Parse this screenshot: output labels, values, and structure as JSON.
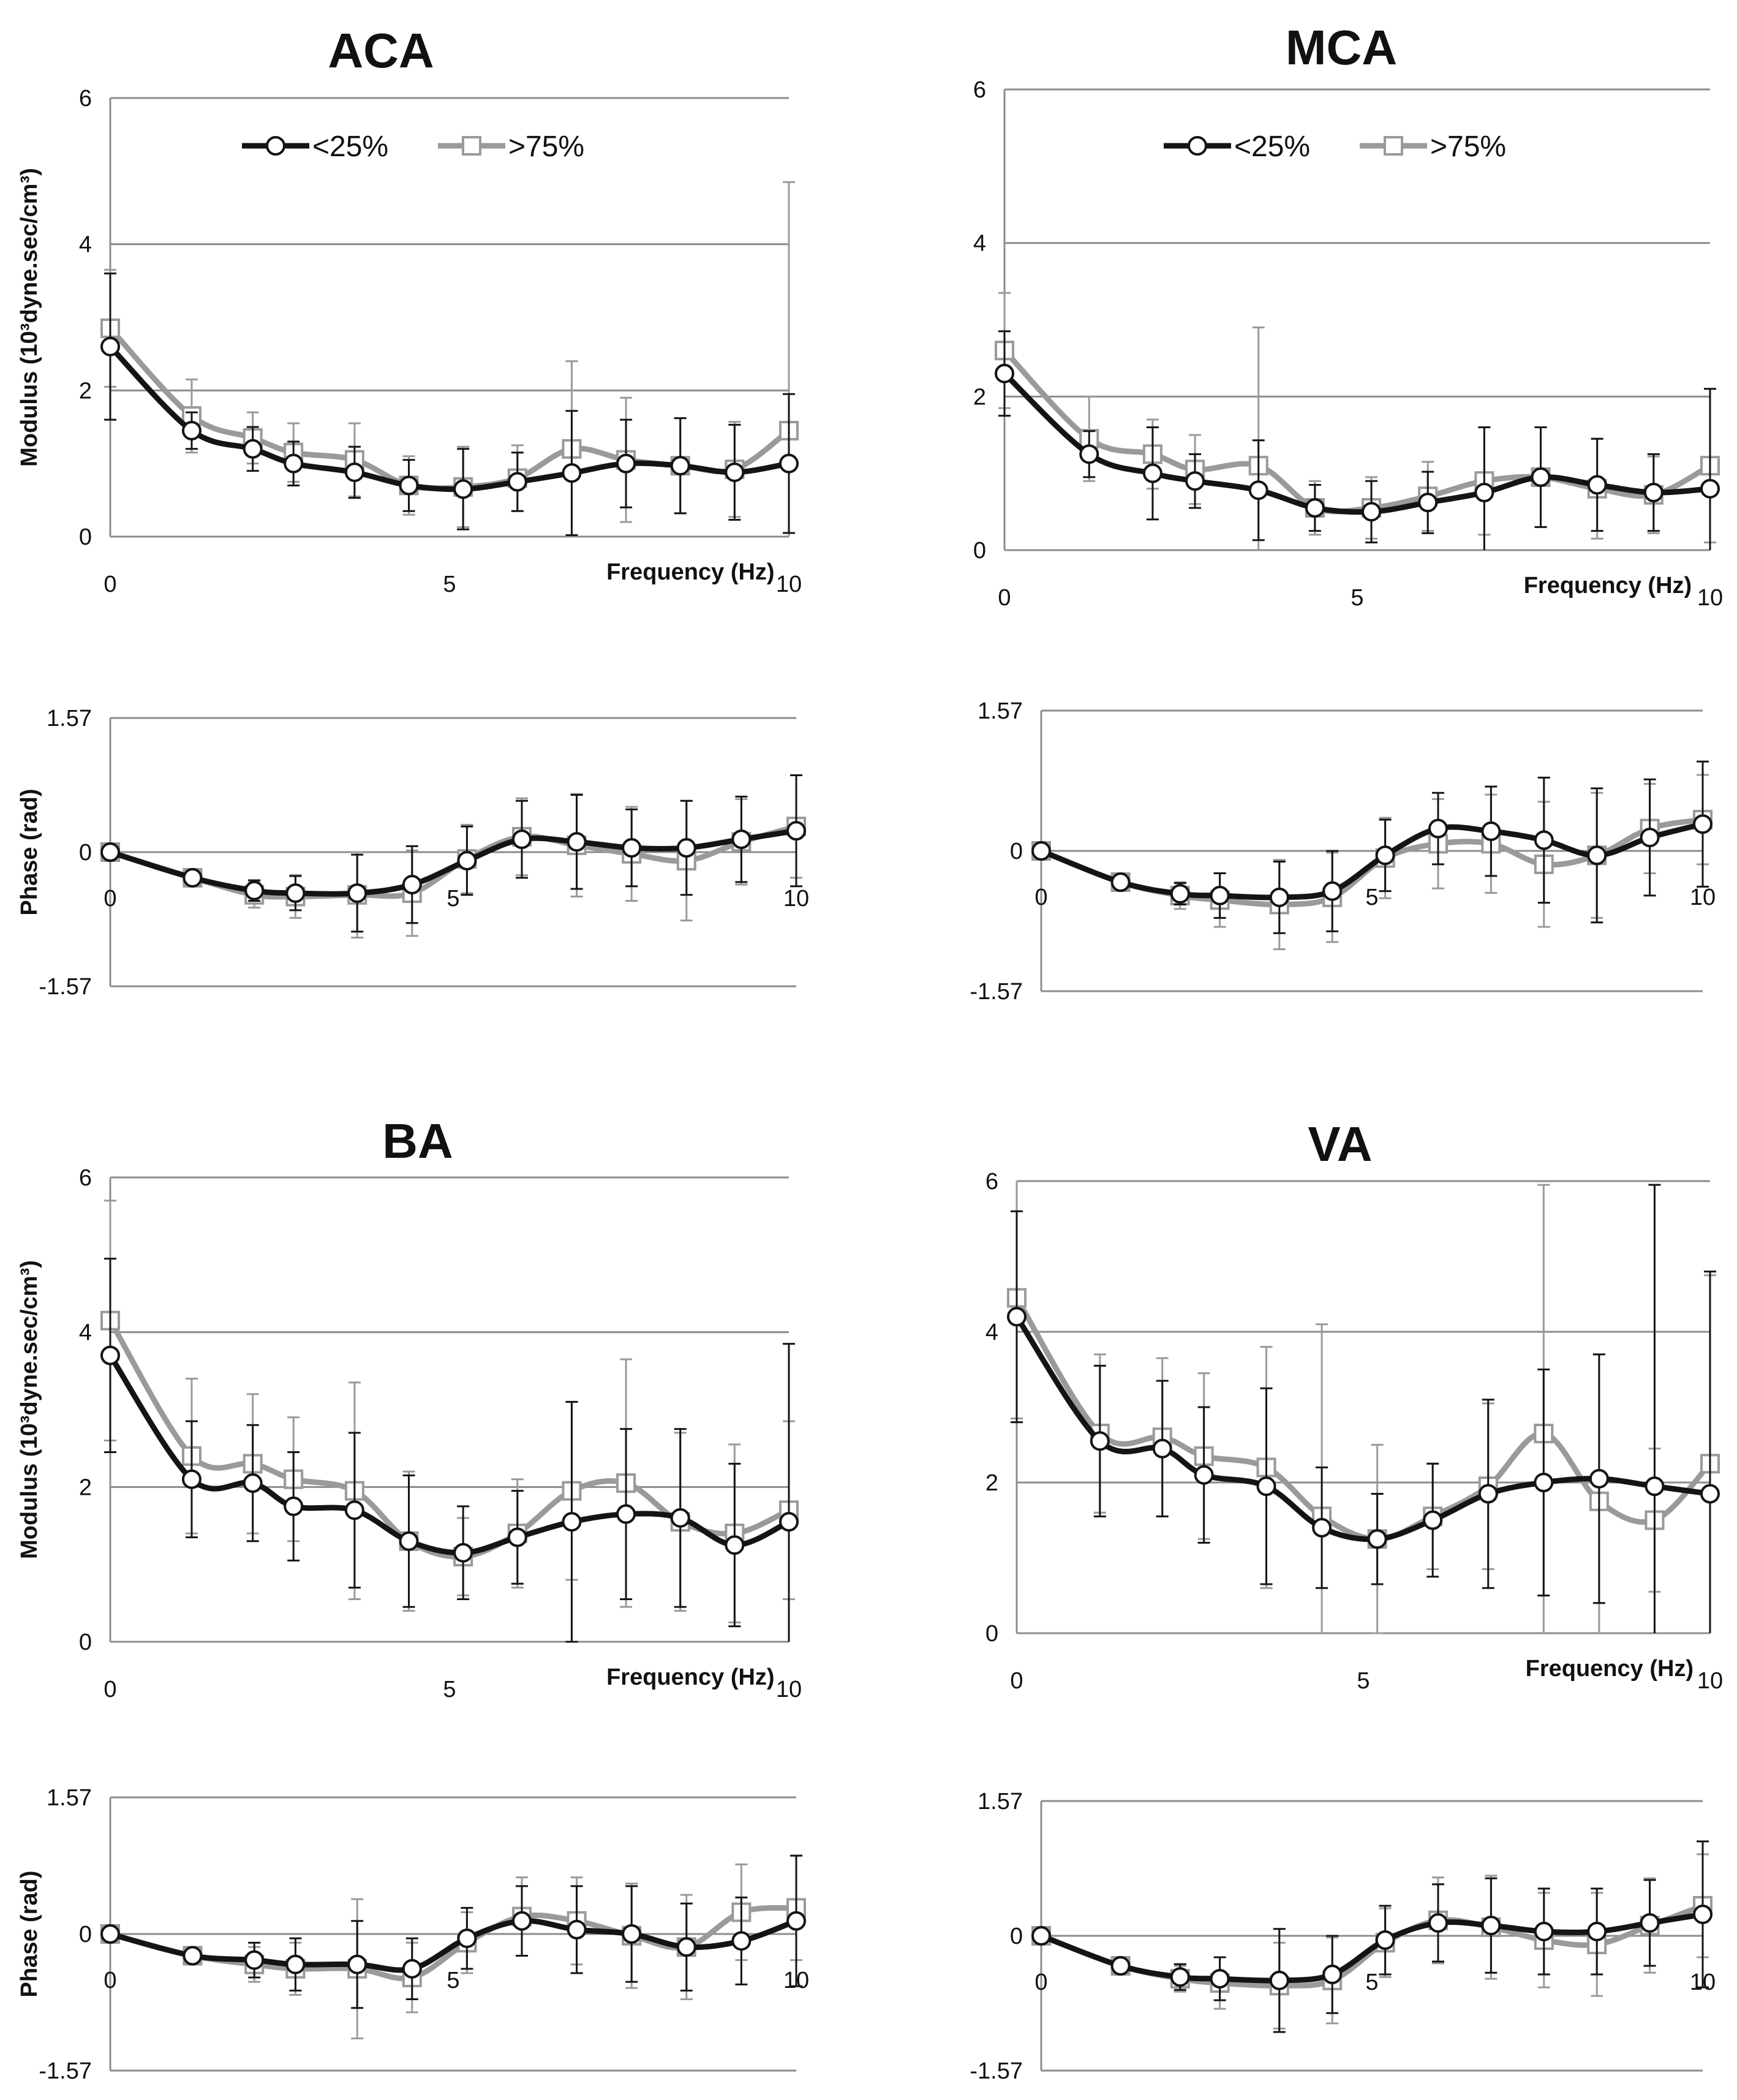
{
  "colors": {
    "lt25": "#141414",
    "gt75": "#9a9a9a",
    "grid": "#8c8c8c",
    "axis": "#8c8c8c"
  },
  "legend": {
    "lt25": "<25%",
    "gt75": ">75%"
  },
  "chart_data": [
    {
      "type": "line",
      "panel": "ACA",
      "kind": "modulus",
      "title": "ACA",
      "xlabel": "Frequency (Hz)",
      "ylabel": "Modulus (10³dyne.sec/cm³)",
      "xlim": [
        0,
        10
      ],
      "ylim": [
        0,
        6
      ],
      "xticks": [
        "0",
        "5",
        "10"
      ],
      "yticks": [
        "0",
        "2",
        "4",
        "6"
      ],
      "grid": true,
      "legend": "top",
      "x": [
        0,
        1.2,
        2.1,
        2.7,
        3.6,
        4.4,
        5.2,
        6.0,
        6.8,
        7.6,
        8.4,
        9.2,
        10
      ],
      "series": [
        {
          "key": "lt25",
          "name": "<25%",
          "values": [
            2.6,
            1.45,
            1.2,
            1.0,
            0.88,
            0.7,
            0.65,
            0.75,
            0.87,
            1.0,
            0.97,
            0.88,
            1.0
          ],
          "errors": [
            1.0,
            0.25,
            0.3,
            0.3,
            0.35,
            0.35,
            0.55,
            0.4,
            0.85,
            0.6,
            0.65,
            0.65,
            0.95
          ]
        },
        {
          "key": "gt75",
          "name": ">75%",
          "values": [
            2.85,
            1.65,
            1.35,
            1.15,
            1.05,
            0.7,
            0.68,
            0.8,
            1.2,
            1.05,
            0.97,
            0.92,
            1.45
          ],
          "errors": [
            0.8,
            0.5,
            0.35,
            0.4,
            0.5,
            0.4,
            0.55,
            0.45,
            1.2,
            0.85,
            0.65,
            0.65,
            3.4
          ]
        }
      ]
    },
    {
      "type": "line",
      "panel": "ACA",
      "kind": "phase",
      "xlabel": "",
      "ylabel": "Phase (rad)",
      "xlim": [
        0,
        10
      ],
      "ylim": [
        -1.57,
        1.57
      ],
      "xticks": [
        "0",
        "5",
        "10"
      ],
      "yticks": [
        "-1.57",
        "0",
        "1.57"
      ],
      "grid": true,
      "x": [
        0,
        1.2,
        2.1,
        2.7,
        3.6,
        4.4,
        5.2,
        6.0,
        6.8,
        7.6,
        8.4,
        9.2,
        10
      ],
      "series": [
        {
          "key": "lt25",
          "name": "<25%",
          "values": [
            0.0,
            -0.3,
            -0.45,
            -0.48,
            -0.48,
            -0.38,
            -0.1,
            0.15,
            0.12,
            0.05,
            0.05,
            0.15,
            0.25
          ],
          "errors": [
            0.0,
            0.05,
            0.12,
            0.2,
            0.45,
            0.45,
            0.4,
            0.45,
            0.55,
            0.45,
            0.55,
            0.5,
            0.65
          ]
        },
        {
          "key": "gt75",
          "name": ">75%",
          "values": [
            0.0,
            -0.3,
            -0.5,
            -0.52,
            -0.5,
            -0.48,
            -0.08,
            0.18,
            0.08,
            -0.02,
            -0.1,
            0.12,
            0.3
          ],
          "errors": [
            0.0,
            0.05,
            0.15,
            0.25,
            0.5,
            0.5,
            0.4,
            0.45,
            0.6,
            0.55,
            0.7,
            0.5,
            0.6
          ]
        }
      ]
    },
    {
      "type": "line",
      "panel": "MCA",
      "kind": "modulus",
      "title": "MCA",
      "xlabel": "Frequency (Hz)",
      "ylabel": "",
      "xlim": [
        0,
        10
      ],
      "ylim": [
        0,
        6
      ],
      "xticks": [
        "0",
        "5",
        "10"
      ],
      "yticks": [
        "0",
        "2",
        "4",
        "6"
      ],
      "grid": true,
      "legend": "top",
      "x": [
        0,
        1.2,
        2.1,
        2.7,
        3.6,
        4.4,
        5.2,
        6.0,
        6.8,
        7.6,
        8.4,
        9.2,
        10
      ],
      "series": [
        {
          "key": "lt25",
          "name": "<25%",
          "values": [
            2.3,
            1.25,
            1.0,
            0.9,
            0.78,
            0.55,
            0.5,
            0.62,
            0.75,
            0.95,
            0.85,
            0.75,
            0.8
          ],
          "errors": [
            0.55,
            0.3,
            0.6,
            0.35,
            0.65,
            0.3,
            0.4,
            0.4,
            0.85,
            0.65,
            0.6,
            0.5,
            1.3
          ]
        },
        {
          "key": "gt75",
          "name": ">75%",
          "values": [
            2.6,
            1.45,
            1.25,
            1.05,
            1.1,
            0.55,
            0.55,
            0.7,
            0.9,
            0.95,
            0.8,
            0.72,
            1.1
          ],
          "errors": [
            0.75,
            0.55,
            0.45,
            0.45,
            1.8,
            0.35,
            0.4,
            0.45,
            0.7,
            0.65,
            0.65,
            0.5,
            1.0
          ]
        }
      ]
    },
    {
      "type": "line",
      "panel": "MCA",
      "kind": "phase",
      "xlabel": "",
      "ylabel": "",
      "xlim": [
        0,
        10
      ],
      "ylim": [
        -1.57,
        1.57
      ],
      "xticks": [
        "0",
        "5",
        "10"
      ],
      "yticks": [
        "-1.57",
        "0",
        "1.57"
      ],
      "grid": true,
      "x": [
        0,
        1.2,
        2.1,
        2.7,
        3.6,
        4.4,
        5.2,
        6.0,
        6.8,
        7.6,
        8.4,
        9.2,
        10
      ],
      "series": [
        {
          "key": "lt25",
          "name": "<25%",
          "values": [
            0.0,
            -0.35,
            -0.48,
            -0.5,
            -0.52,
            -0.45,
            -0.05,
            0.25,
            0.22,
            0.12,
            -0.05,
            0.15,
            0.3
          ],
          "errors": [
            0.0,
            0.05,
            0.12,
            0.25,
            0.4,
            0.45,
            0.4,
            0.4,
            0.5,
            0.7,
            0.75,
            0.65,
            0.7
          ]
        },
        {
          "key": "gt75",
          "name": ">75%",
          "values": [
            0.0,
            -0.35,
            -0.5,
            -0.55,
            -0.6,
            -0.52,
            -0.08,
            0.08,
            0.08,
            -0.15,
            -0.05,
            0.25,
            0.35
          ],
          "errors": [
            0.0,
            0.05,
            0.15,
            0.3,
            0.5,
            0.5,
            0.45,
            0.5,
            0.55,
            0.7,
            0.7,
            0.5,
            0.5
          ]
        }
      ]
    },
    {
      "type": "line",
      "panel": "BA",
      "kind": "modulus",
      "title": "BA",
      "xlabel": "Frequency (Hz)",
      "ylabel": "Modulus (10³dyne.sec/cm³)",
      "xlim": [
        0,
        10
      ],
      "ylim": [
        0,
        6
      ],
      "xticks": [
        "0",
        "5",
        "10"
      ],
      "yticks": [
        "0",
        "2",
        "4",
        "6"
      ],
      "grid": true,
      "x": [
        0,
        1.2,
        2.1,
        2.7,
        3.6,
        4.4,
        5.2,
        6.0,
        6.8,
        7.6,
        8.4,
        9.2,
        10
      ],
      "series": [
        {
          "key": "lt25",
          "name": "<25%",
          "values": [
            3.7,
            2.1,
            2.05,
            1.75,
            1.7,
            1.3,
            1.15,
            1.35,
            1.55,
            1.65,
            1.6,
            1.25,
            1.55
          ],
          "errors": [
            1.25,
            0.75,
            0.75,
            0.7,
            1.0,
            0.85,
            0.6,
            0.6,
            1.55,
            1.1,
            1.15,
            1.05,
            2.3
          ]
        },
        {
          "key": "gt75",
          "name": ">75%",
          "values": [
            4.15,
            2.4,
            2.3,
            2.1,
            1.95,
            1.3,
            1.1,
            1.4,
            1.95,
            2.05,
            1.55,
            1.4,
            1.7
          ],
          "errors": [
            1.55,
            1.0,
            0.9,
            0.8,
            1.4,
            0.9,
            0.5,
            0.7,
            1.15,
            1.6,
            1.15,
            1.15,
            1.15
          ]
        }
      ]
    },
    {
      "type": "line",
      "panel": "BA",
      "kind": "phase",
      "xlabel": "",
      "ylabel": "Phase (rad)",
      "xlim": [
        0,
        10
      ],
      "ylim": [
        -1.57,
        1.57
      ],
      "xticks": [
        "0",
        "5",
        "10"
      ],
      "yticks": [
        "-1.57",
        "0",
        "1.57"
      ],
      "grid": true,
      "x": [
        0,
        1.2,
        2.1,
        2.7,
        3.6,
        4.4,
        5.2,
        6.0,
        6.8,
        7.6,
        8.4,
        9.2,
        10
      ],
      "series": [
        {
          "key": "lt25",
          "name": "<25%",
          "values": [
            0.0,
            -0.25,
            -0.3,
            -0.35,
            -0.35,
            -0.4,
            -0.05,
            0.15,
            0.05,
            0.0,
            -0.15,
            -0.08,
            0.15
          ],
          "errors": [
            0.0,
            0.05,
            0.2,
            0.3,
            0.5,
            0.35,
            0.35,
            0.4,
            0.5,
            0.55,
            0.5,
            0.5,
            0.75
          ]
        },
        {
          "key": "gt75",
          "name": ">75%",
          "values": [
            0.0,
            -0.25,
            -0.35,
            -0.4,
            -0.4,
            -0.5,
            -0.1,
            0.2,
            0.15,
            -0.02,
            -0.15,
            0.25,
            0.3
          ],
          "errors": [
            0.0,
            0.05,
            0.2,
            0.3,
            0.8,
            0.4,
            0.35,
            0.45,
            0.5,
            0.6,
            0.6,
            0.55,
            0.6
          ]
        }
      ]
    },
    {
      "type": "line",
      "panel": "VA",
      "kind": "modulus",
      "title": "VA",
      "xlabel": "Frequency (Hz)",
      "ylabel": "",
      "xlim": [
        0,
        10
      ],
      "ylim": [
        0,
        6
      ],
      "xticks": [
        "0",
        "5",
        "10"
      ],
      "yticks": [
        "0",
        "2",
        "4",
        "6"
      ],
      "grid": true,
      "x": [
        0,
        1.2,
        2.1,
        2.7,
        3.6,
        4.4,
        5.2,
        6.0,
        6.8,
        7.6,
        8.4,
        9.2,
        10
      ],
      "series": [
        {
          "key": "lt25",
          "name": "<25%",
          "values": [
            4.2,
            2.55,
            2.45,
            2.1,
            1.95,
            1.4,
            1.25,
            1.5,
            1.85,
            2.0,
            2.05,
            1.95,
            1.85
          ],
          "errors": [
            1.4,
            1.0,
            0.9,
            0.9,
            1.3,
            0.8,
            0.6,
            0.75,
            1.25,
            1.5,
            1.65,
            4.0,
            2.95
          ]
        },
        {
          "key": "gt75",
          "name": ">75%",
          "values": [
            4.45,
            2.65,
            2.6,
            2.35,
            2.2,
            1.55,
            1.25,
            1.55,
            1.95,
            2.65,
            1.75,
            1.5,
            2.25
          ],
          "errors": [
            1.6,
            1.05,
            1.05,
            1.1,
            1.6,
            2.55,
            1.25,
            0.7,
            1.1,
            3.3,
            1.95,
            0.95,
            2.5
          ]
        }
      ]
    },
    {
      "type": "line",
      "panel": "VA",
      "kind": "phase",
      "xlabel": "",
      "ylabel": "",
      "xlim": [
        0,
        10
      ],
      "ylim": [
        -1.57,
        1.57
      ],
      "xticks": [
        "0",
        "5",
        "10"
      ],
      "yticks": [
        "-1.57",
        "0",
        "1.57"
      ],
      "grid": true,
      "x": [
        0,
        1.2,
        2.1,
        2.7,
        3.6,
        4.4,
        5.2,
        6.0,
        6.8,
        7.6,
        8.4,
        9.2,
        10
      ],
      "series": [
        {
          "key": "lt25",
          "name": "<25%",
          "values": [
            0.0,
            -0.35,
            -0.48,
            -0.5,
            -0.52,
            -0.45,
            -0.05,
            0.15,
            0.12,
            0.05,
            0.05,
            0.15,
            0.25
          ],
          "errors": [
            0.0,
            0.05,
            0.15,
            0.25,
            0.6,
            0.45,
            0.4,
            0.45,
            0.55,
            0.5,
            0.5,
            0.5,
            0.85
          ]
        },
        {
          "key": "gt75",
          "name": ">75%",
          "values": [
            0.0,
            -0.35,
            -0.5,
            -0.55,
            -0.58,
            -0.52,
            -0.08,
            0.18,
            0.1,
            -0.05,
            -0.1,
            0.12,
            0.35
          ],
          "errors": [
            0.0,
            0.05,
            0.15,
            0.3,
            0.5,
            0.5,
            0.4,
            0.5,
            0.6,
            0.55,
            0.6,
            0.55,
            0.6
          ]
        }
      ]
    }
  ]
}
